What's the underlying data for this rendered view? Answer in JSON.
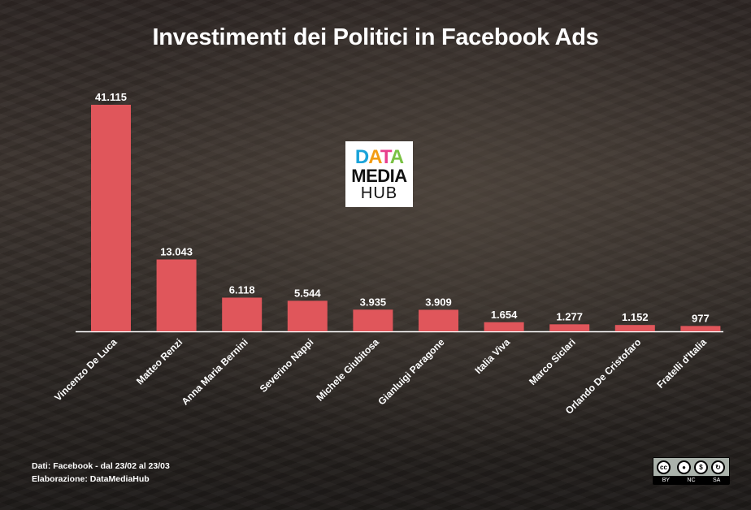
{
  "title": "Investimenti dei Politici in Facebook Ads",
  "logo": {
    "line1_parts": [
      "D",
      "A",
      "T",
      "A"
    ],
    "line2": "MEDIA",
    "line3": "HUB"
  },
  "notes": {
    "source": "Dati: Facebook - dal 23/02 al 23/03",
    "credit": "Elaborazione: DataMediaHub"
  },
  "license": {
    "symbol_cc": "cc",
    "labels": [
      "BY",
      "NC",
      "SA"
    ]
  },
  "colors": {
    "bar": "#e0565b",
    "text": "#ffffff"
  },
  "chart_data": {
    "type": "bar",
    "title": "Investimenti dei Politici in Facebook Ads",
    "categories": [
      "Vincenzo De Luca",
      "Matteo Renzi",
      "Anna Maria Bernini",
      "Severino Nappi",
      "Michele Giubitosa",
      "Gianluigi Paragone",
      "Italia Viva",
      "Marco Siclari",
      "Orlando De Cristofaro",
      "Fratelli d'Italia"
    ],
    "values": [
      41115,
      13043,
      6118,
      5544,
      3935,
      3909,
      1654,
      1277,
      1152,
      977
    ],
    "value_labels": [
      "41.115",
      "13.043",
      "6.118",
      "5.544",
      "3.935",
      "3.909",
      "1.654",
      "1.277",
      "1.152",
      "977"
    ],
    "ylim": [
      0,
      41115
    ],
    "grid": false,
    "legend": "none"
  }
}
